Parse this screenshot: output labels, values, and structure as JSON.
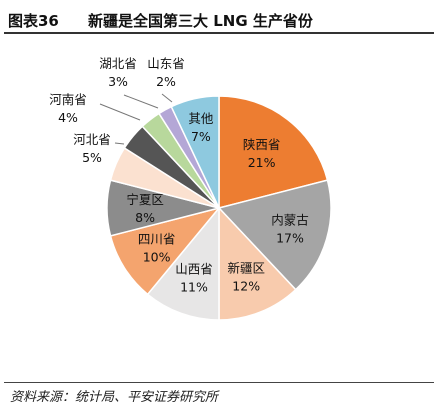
{
  "header": {
    "figure_number": "图表36",
    "title": "新疆是全国第三大 LNG 生产省份"
  },
  "footer": {
    "source": "资料来源：统计局、平安证券研究所"
  },
  "chart_data": {
    "type": "pie",
    "title": "新疆是全国第三大 LNG 生产省份",
    "unit": "%",
    "start_angle_deg": 0,
    "direction": "clockwise",
    "slices": [
      {
        "label": "陕西省",
        "value": 21,
        "value_label": "21%",
        "color": "#ED7D31",
        "label_position": "inside"
      },
      {
        "label": "内蒙古",
        "value": 17,
        "value_label": "17%",
        "color": "#A5A5A5",
        "label_position": "inside"
      },
      {
        "label": "新疆区",
        "value": 12,
        "value_label": "12%",
        "color": "#F8CBAD",
        "label_position": "inside"
      },
      {
        "label": "山西省",
        "value": 11,
        "value_label": "11%",
        "color": "#E7E6E6",
        "label_position": "inside"
      },
      {
        "label": "四川省",
        "value": 10,
        "value_label": "10%",
        "color": "#F4A46E",
        "label_position": "inside"
      },
      {
        "label": "宁夏区",
        "value": 8,
        "value_label": "8%",
        "color": "#8C8C8C",
        "label_position": "inside"
      },
      {
        "label": "河北省",
        "value": 5,
        "value_label": "5%",
        "color": "#FBE1D0",
        "label_position": "outside"
      },
      {
        "label": "河南省",
        "value": 4,
        "value_label": "4%",
        "color": "#555555",
        "label_position": "outside"
      },
      {
        "label": "湖北省",
        "value": 3,
        "value_label": "3%",
        "color": "#B8D89C",
        "label_position": "outside"
      },
      {
        "label": "山东省",
        "value": 2,
        "value_label": "2%",
        "color": "#B4A7D6",
        "label_position": "outside"
      },
      {
        "label": "其他",
        "value": 7,
        "value_label": "7%",
        "color": "#8EC9DF",
        "label_position": "inside"
      }
    ]
  }
}
